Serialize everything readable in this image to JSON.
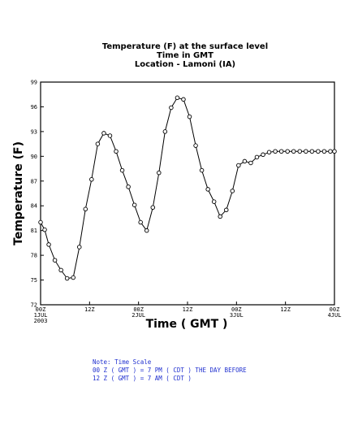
{
  "chart_data": {
    "type": "line",
    "title_lines": [
      "Temperature (F) at the surface level",
      "Time in GMT",
      "Location - Lamoni (IA)"
    ],
    "xlabel": "Time ( GMT )",
    "ylabel": "Temperature (F)",
    "ylim": [
      72,
      99
    ],
    "yticks": [
      72,
      75,
      78,
      81,
      84,
      87,
      90,
      93,
      96,
      99
    ],
    "xlim_hours": [
      0,
      72
    ],
    "xticks": [
      {
        "h": 0,
        "lines": [
          "00Z",
          "1JUL",
          "2003"
        ]
      },
      {
        "h": 12,
        "lines": [
          "12Z"
        ]
      },
      {
        "h": 24,
        "lines": [
          "00Z",
          "2JUL"
        ]
      },
      {
        "h": 36,
        "lines": [
          "12Z"
        ]
      },
      {
        "h": 48,
        "lines": [
          "00Z",
          "3JUL"
        ]
      },
      {
        "h": 60,
        "lines": [
          "12Z"
        ]
      },
      {
        "h": 72,
        "lines": [
          "00Z",
          "4JUL"
        ]
      }
    ],
    "series": [
      {
        "x": [
          0,
          1,
          2,
          3.5,
          5,
          6.5,
          8,
          9.5,
          11,
          12.5,
          14,
          15.5,
          17,
          18.5,
          20,
          21.5,
          23,
          24.5,
          26,
          27.5,
          29,
          30.5,
          32,
          33.5,
          35,
          36.5,
          38,
          39.5,
          41,
          42.5,
          44,
          45.5,
          47,
          48.5,
          50,
          51.5,
          53,
          54.5,
          56,
          57.5,
          59,
          60.5,
          62,
          63.5,
          65,
          66.5,
          68,
          69.5,
          71,
          72
        ],
        "y": [
          82.0,
          81.1,
          79.3,
          77.4,
          76.2,
          75.2,
          75.3,
          79.0,
          83.6,
          87.2,
          91.5,
          92.8,
          92.5,
          90.6,
          88.3,
          86.3,
          84.1,
          82.0,
          81.0,
          83.8,
          88.0,
          93.0,
          95.9,
          97.1,
          96.9,
          94.8,
          91.3,
          88.3,
          86.0,
          84.5,
          82.7,
          83.5,
          85.8,
          88.9,
          89.4,
          89.2,
          89.9,
          90.2,
          90.5,
          90.6,
          90.6,
          90.6,
          90.6,
          90.6,
          90.6,
          90.6,
          90.6,
          90.6,
          90.6,
          90.6
        ]
      }
    ],
    "grid": false,
    "marker": "open-circle"
  },
  "note": {
    "lines": [
      "Note: Time Scale",
      "00 Z ( GMT ) = 7 PM ( CDT ) THE DAY BEFORE",
      "12 Z ( GMT ) = 7 AM ( CDT )"
    ],
    "color": "#1f2fcf"
  }
}
